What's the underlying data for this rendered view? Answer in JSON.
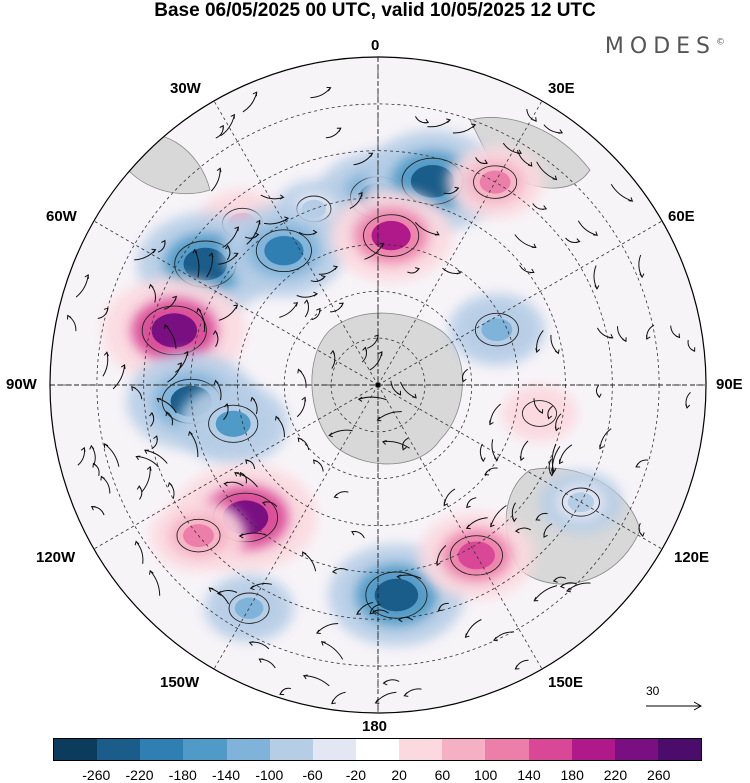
{
  "title": "Base 06/05/2025 00 UTC, valid 10/05/2025 12 UTC",
  "brand": "MODES",
  "brand_mark": "©",
  "longitude_labels": {
    "top": "0",
    "bottom": "180",
    "left": "90W",
    "right": "90E",
    "w30": "30W",
    "e30": "30E",
    "w60": "60W",
    "e60": "60E",
    "w120": "120W",
    "e120": "120E",
    "w150": "150W",
    "e150": "150E"
  },
  "reference_vector": "30",
  "colorbar": {
    "ticks": [
      "-260",
      "-220",
      "-180",
      "-140",
      "-100",
      "-60",
      "-20",
      "20",
      "60",
      "100",
      "140",
      "180",
      "220",
      "260"
    ],
    "colors": [
      "#0b3c5d",
      "#1a5d8a",
      "#2f7fb3",
      "#4f9ac6",
      "#7fb3d9",
      "#b6cde6",
      "#e3e6f3",
      "#ffffff",
      "#fbd9df",
      "#f5b0c3",
      "#ec7fa9",
      "#d94896",
      "#b0198a",
      "#7a0f82",
      "#4b0c6b"
    ]
  },
  "map": {
    "land_color": "#d8d8d8",
    "anomalies": [
      {
        "lon": 0,
        "lat": -50,
        "value": -200
      },
      {
        "lon": 15,
        "lat": -45,
        "value": -240
      },
      {
        "lon": 30,
        "lat": -40,
        "value": 120
      },
      {
        "lon": -40,
        "lat": -45,
        "value": 100
      },
      {
        "lon": -20,
        "lat": -50,
        "value": -60
      },
      {
        "lon": -55,
        "lat": -45,
        "value": -240
      },
      {
        "lon": -35,
        "lat": -55,
        "value": -200
      },
      {
        "lon": 5,
        "lat": -58,
        "value": 200
      },
      {
        "lon": -75,
        "lat": -45,
        "value": 260
      },
      {
        "lon": -95,
        "lat": -50,
        "value": -220
      },
      {
        "lon": -105,
        "lat": -58,
        "value": -160
      },
      {
        "lon": -135,
        "lat": -50,
        "value": 260
      },
      {
        "lon": -130,
        "lat": -40,
        "value": 120
      },
      {
        "lon": -150,
        "lat": -35,
        "value": -100
      },
      {
        "lon": 175,
        "lat": -45,
        "value": -240
      },
      {
        "lon": 150,
        "lat": -48,
        "value": 180
      },
      {
        "lon": 65,
        "lat": -62,
        "value": -120
      },
      {
        "lon": 100,
        "lat": -55,
        "value": 60
      },
      {
        "lon": 120,
        "lat": -40,
        "value": -80
      }
    ]
  }
}
